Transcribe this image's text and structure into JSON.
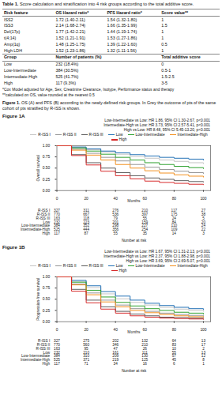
{
  "table": {
    "label": "Table 1.",
    "title": "Score calculation and stratification into 4 risk groups according to the total additive score.",
    "header": [
      "Risk feature",
      "OS Hazard ratio*",
      "PFS Hazard ratio*",
      "Score value**"
    ],
    "rows": [
      [
        "ISS2",
        "1.72 (1.40-2.11)",
        "1.54 (1.32-1.80)",
        "1"
      ],
      [
        "ISS3",
        "2.14 (1.68-2.74)",
        "1.66 (1.35-1.99)",
        "1.5"
      ],
      [
        "Del(17p)",
        "1.77 (1.42-2.21)",
        "1.44 (1.19-1.74)",
        "1"
      ],
      [
        "t(4;14)",
        "1.52 (1.21-1.91)",
        "1.53 (1.27-1.86)",
        "1"
      ],
      [
        "Amp(1q)",
        "1.48 (1.25-1.75)",
        "1.39 (1.22-1.60)",
        "0.5"
      ],
      [
        "High LDH",
        "1.52 (1.23-1.86)",
        "1.32 (1.11-1.56)",
        "1"
      ]
    ],
    "group_header": [
      "Group",
      "Number of patients (%)",
      "Total additive score"
    ],
    "group_rows": [
      [
        "Low",
        "232 (18.4%)",
        "0"
      ],
      [
        "Low-Intermediate",
        "384 (30.5%)",
        "0.5-1"
      ],
      [
        "Intermediate-High",
        "525 (41.7%)",
        "1.5-2.5"
      ],
      [
        "High",
        "117 (9.3%)",
        "3-5"
      ]
    ],
    "footnotes": [
      "*Cox Model adjusted for Age, Sex, Creatinine Clearance, Isotype, Performance status and therapy",
      "**calculated on OS, value rounded at the nearest 0.5"
    ]
  },
  "caption": {
    "label": "Figure 1.",
    "text": "OS (A) and PFS (B) according to the newly-defined risk groups. In Grey the outcome of pts of the same cohort of pts stratified by R-ISS is shown."
  },
  "chart_data": [
    {
      "type": "line",
      "title": "Figure 1A",
      "x_label": "Months",
      "y_label": "Overall survival",
      "line_style": "step",
      "legend": "top",
      "annotations": [
        "Low-Intermediate vs Low: HR 1.86, 95% CI 1.30-2.67, p<0.001",
        "Intermediate-High vs Low: HR 3.73, 95% CI 2.57-5.41, p<0.001",
        "High vs Low: HR 8.48, 95% CI 5.45-13.20, p<0.001"
      ],
      "xlim": [
        0,
        105
      ],
      "xticks": [
        0,
        20,
        40,
        60,
        80,
        100
      ],
      "ylim": [
        0,
        1
      ],
      "yticks": [
        {
          "value": 0,
          "label": "0.00"
        },
        {
          "value": 0.25,
          "label": "0.25"
        },
        {
          "value": 0.5,
          "label": "0.50"
        },
        {
          "value": 0.75,
          "label": "0.75"
        },
        {
          "value": 1,
          "label": "1.00"
        }
      ],
      "x": [
        0,
        10,
        20,
        30,
        40,
        50,
        60,
        70,
        80,
        90,
        100
      ],
      "at_risk_title": "Number at risk",
      "at_risk_x": [
        0,
        20,
        40,
        60,
        80,
        100
      ],
      "series": [
        {
          "name": "R-ISS I",
          "color": "#c4c4c4",
          "values": [
            1,
            0.96,
            0.91,
            0.86,
            0.81,
            0.76,
            0.72,
            0.68,
            0.65,
            0.62,
            0.6
          ],
          "at_risk": [
            327,
            311,
            276,
            210,
            117,
            27
          ]
        },
        {
          "name": "R-ISS II",
          "color": "#939393",
          "values": [
            1,
            0.92,
            0.83,
            0.74,
            0.66,
            0.58,
            0.52,
            0.47,
            0.43,
            0.4,
            0.38
          ],
          "at_risk": [
            770,
            667,
            536,
            397,
            175,
            38
          ]
        },
        {
          "name": "R-ISS III",
          "color": "#5a5a5a",
          "values": [
            1,
            0.8,
            0.62,
            0.5,
            0.4,
            0.33,
            0.28,
            0.25,
            0.22,
            0.2,
            0.19
          ],
          "at_risk": [
            163,
            118,
            79,
            55,
            24,
            5
          ]
        },
        {
          "name": "Low",
          "color": "#1f6fb4",
          "values": [
            1,
            0.97,
            0.93,
            0.88,
            0.84,
            0.8,
            0.77,
            0.74,
            0.72,
            0.7,
            0.68
          ],
          "at_risk": [
            232,
            223,
            201,
            159,
            84,
            20
          ]
        },
        {
          "name": "Low-Intermediate",
          "color": "#2ca02c",
          "values": [
            1,
            0.95,
            0.88,
            0.81,
            0.74,
            0.68,
            0.62,
            0.58,
            0.54,
            0.51,
            0.49
          ],
          "at_risk": [
            384,
            352,
            298,
            227,
            110,
            24
          ]
        },
        {
          "name": "Intermediate-High",
          "color": "#f28e1c",
          "values": [
            1,
            0.9,
            0.79,
            0.68,
            0.58,
            0.5,
            0.44,
            0.39,
            0.35,
            0.32,
            0.3
          ],
          "at_risk": [
            525,
            444,
            356,
            254,
            109,
            22
          ]
        },
        {
          "name": "High",
          "color": "#d62728",
          "values": [
            1,
            0.78,
            0.57,
            0.43,
            0.33,
            0.26,
            0.21,
            0.18,
            0.16,
            0.14,
            0.13
          ],
          "at_risk": [
            117,
            87,
            55,
            35,
            14,
            3
          ]
        }
      ]
    },
    {
      "type": "line",
      "title": "Figure 1B",
      "x_label": "Months",
      "y_label": "Progression-free survival",
      "line_style": "step",
      "legend": "top",
      "annotations": [
        "Low-Intermediate vs Low: HR 1.67, 95% CI 1.31-2.13, p<0.001",
        "Intermediate-High vs Low: HR 2.37, 95% CI 1.88-2.98, p<0.001",
        "High vs Low: HR 3.69, 95% CI 2.69-5.07, p<0.001"
      ],
      "xlim": [
        0,
        105
      ],
      "xticks": [
        0,
        20,
        40,
        60,
        80,
        100
      ],
      "ylim": [
        0,
        1
      ],
      "yticks": [
        {
          "value": 0,
          "label": "0.00"
        },
        {
          "value": 0.25,
          "label": "0.25"
        },
        {
          "value": 0.5,
          "label": "0.50"
        },
        {
          "value": 0.75,
          "label": "0.75"
        },
        {
          "value": 1,
          "label": "1.00"
        }
      ],
      "x": [
        0,
        10,
        20,
        30,
        40,
        50,
        60,
        70,
        80,
        90,
        100
      ],
      "at_risk_title": "Number at risk",
      "at_risk_x": [
        0,
        20,
        40,
        60,
        80,
        100
      ],
      "series": [
        {
          "name": "R-ISS I",
          "color": "#c4c4c4",
          "values": [
            1,
            0.9,
            0.76,
            0.62,
            0.51,
            0.43,
            0.37,
            0.32,
            0.28,
            0.25,
            0.23
          ],
          "at_risk": [
            327,
            275,
            202,
            132,
            64,
            13
          ]
        },
        {
          "name": "R-ISS II",
          "color": "#939393",
          "values": [
            1,
            0.84,
            0.64,
            0.48,
            0.37,
            0.29,
            0.23,
            0.19,
            0.16,
            0.14,
            0.12
          ],
          "at_risk": [
            770,
            560,
            346,
            210,
            83,
            17
          ]
        },
        {
          "name": "R-ISS III",
          "color": "#5a5a5a",
          "values": [
            1,
            0.72,
            0.48,
            0.33,
            0.23,
            0.17,
            0.13,
            0.1,
            0.09,
            0.08,
            0.07
          ],
          "at_risk": [
            163,
            95,
            47,
            26,
            10,
            2
          ]
        },
        {
          "name": "Low",
          "color": "#1f6fb4",
          "values": [
            1,
            0.92,
            0.8,
            0.67,
            0.57,
            0.48,
            0.41,
            0.36,
            0.32,
            0.29,
            0.27
          ],
          "at_risk": [
            232,
            210,
            161,
            111,
            55,
            13
          ]
        },
        {
          "name": "Low-Intermediate",
          "color": "#2ca02c",
          "values": [
            1,
            0.88,
            0.7,
            0.55,
            0.43,
            0.35,
            0.29,
            0.25,
            0.21,
            0.19,
            0.17
          ],
          "at_risk": [
            384,
            310,
            209,
            130,
            57,
            12
          ]
        },
        {
          "name": "Intermediate-High",
          "color": "#f28e1c",
          "values": [
            1,
            0.82,
            0.6,
            0.44,
            0.33,
            0.25,
            0.2,
            0.16,
            0.13,
            0.11,
            0.1
          ],
          "at_risk": [
            525,
            371,
            219,
            125,
            45,
            8
          ]
        },
        {
          "name": "High",
          "color": "#d62728",
          "values": [
            1,
            0.68,
            0.42,
            0.28,
            0.19,
            0.13,
            0.1,
            0.08,
            0.07,
            0.06,
            0.05
          ],
          "at_risk": [
            117,
            71,
            34,
            16,
            6,
            1
          ]
        }
      ]
    }
  ]
}
